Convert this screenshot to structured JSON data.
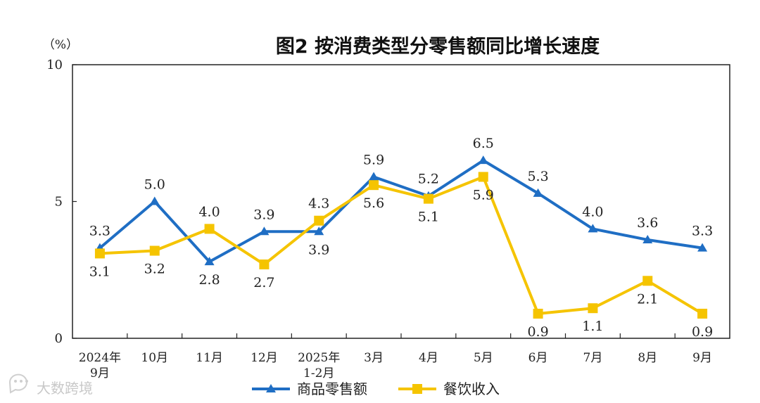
{
  "chart_data": {
    "type": "line",
    "title": "图2  按消费类型分零售额同比增长速度",
    "unit_label": "（%）",
    "ylim": [
      0,
      10
    ],
    "yticks": [
      "0",
      "5",
      "10"
    ],
    "categories": [
      "2024年\n9月",
      "10月",
      "11月",
      "12月",
      "2025年\n1-2月",
      "3月",
      "4月",
      "5月",
      "6月",
      "7月",
      "8月",
      "9月"
    ],
    "series": [
      {
        "name": "商品零售额",
        "color": "#1f6ec4",
        "marker": "triangle",
        "values": [
          3.3,
          5.0,
          2.8,
          3.9,
          3.9,
          5.9,
          5.2,
          6.5,
          5.3,
          4.0,
          3.6,
          3.3
        ],
        "labels": [
          "3.3",
          "5.0",
          "2.8",
          "3.9",
          "3.9",
          "5.9",
          "5.2",
          "6.5",
          "5.3",
          "4.0",
          "3.6",
          "3.3"
        ]
      },
      {
        "name": "餐饮收入",
        "color": "#f5c400",
        "marker": "square",
        "values": [
          3.1,
          3.2,
          4.0,
          2.7,
          4.3,
          5.6,
          5.1,
          5.9,
          0.9,
          1.1,
          2.1,
          0.9
        ],
        "labels": [
          "3.1",
          "3.2",
          "4.0",
          "2.7",
          "4.3",
          "5.6",
          "5.1",
          "5.9",
          "0.9",
          "1.1",
          "2.1",
          "0.9"
        ]
      }
    ],
    "grid": false,
    "legend_position": "bottom-center"
  },
  "watermark": {
    "text": "大数跨境",
    "icon": "chat-bubble-icon"
  }
}
